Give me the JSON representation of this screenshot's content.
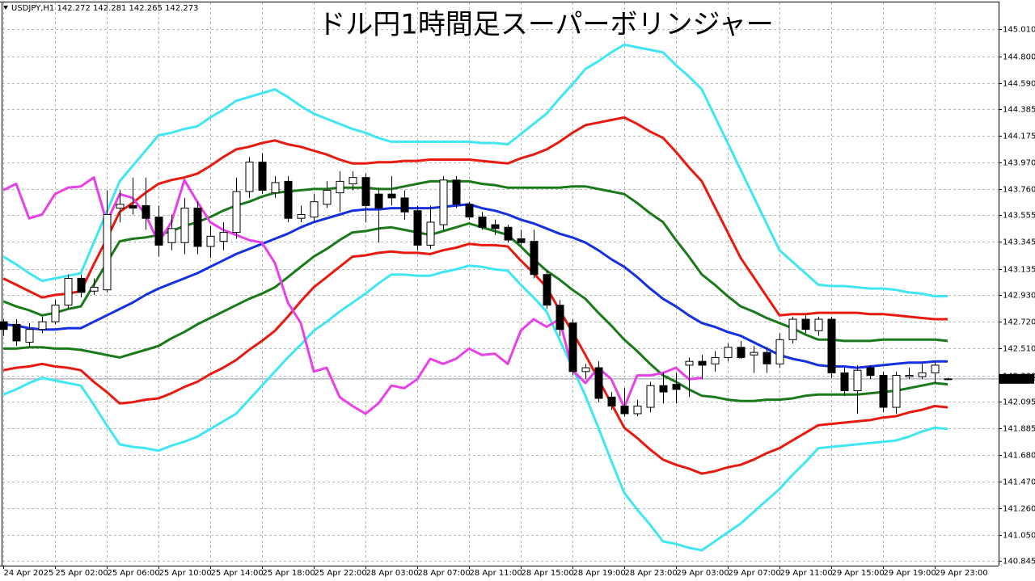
{
  "chart_data": {
    "type": "candlestick",
    "title": "ドル円1時間足スーパーボリンジャー",
    "header": "USDJPY,H1  142.272 142.281 142.265 142.273",
    "current_price": 142.273,
    "grid": true,
    "ylim": [
      140.81,
      145.24
    ],
    "yticks": [
      {
        "value": 145.01,
        "label": "145.010"
      },
      {
        "value": 144.8,
        "label": "144.800"
      },
      {
        "value": 144.59,
        "label": "144.590"
      },
      144.385,
      144.175,
      {
        "value": 143.97,
        "label": "143.970"
      },
      {
        "value": 143.76,
        "label": "143.760"
      },
      143.555,
      143.345,
      143.135,
      {
        "value": 142.93,
        "label": "142.930"
      },
      {
        "value": 142.72,
        "label": "142.720"
      },
      {
        "value": 142.51,
        "label": "142.510"
      },
      {
        "value": 142.3,
        "label": "142.300"
      },
      142.095,
      141.885,
      {
        "value": 141.68,
        "label": "141.680"
      },
      {
        "value": 141.47,
        "label": "141.470"
      },
      {
        "value": 141.26,
        "label": "141.260"
      },
      {
        "value": 141.05,
        "label": "141.050"
      },
      140.845
    ],
    "categories": [
      "24 Apr 2025",
      null,
      null,
      null,
      "25 Apr 02:00",
      null,
      null,
      null,
      "25 Apr 06:00",
      null,
      null,
      null,
      "25 Apr 10:00",
      null,
      null,
      null,
      "25 Apr 14:00",
      null,
      null,
      null,
      "25 Apr 18:00",
      null,
      null,
      null,
      "25 Apr 22:00",
      null,
      null,
      null,
      "28 Apr 03:00",
      null,
      null,
      null,
      "28 Apr 07:00",
      null,
      null,
      null,
      "28 Apr 11:00",
      null,
      null,
      null,
      "28 Apr 15:00",
      null,
      null,
      null,
      "28 Apr 19:00",
      null,
      null,
      null,
      "28 Apr 23:00",
      null,
      null,
      null,
      "29 Apr 03:00",
      null,
      null,
      null,
      "29 Apr 07:00",
      null,
      null,
      null,
      "29 Apr 11:00",
      null,
      null,
      null,
      "29 Apr 15:00",
      null,
      null,
      null,
      "29 Apr 19:00",
      null,
      null,
      null,
      "29 Apr 23:00",
      null
    ],
    "candles": {
      "up_color": "#ffffff",
      "down_color": "#000000",
      "open": [
        142.72,
        142.7,
        142.56,
        142.66,
        142.72,
        142.85,
        143.06,
        142.96,
        142.97,
        143.61,
        143.63,
        143.63,
        143.54,
        143.34,
        143.34,
        143.61,
        143.31,
        143.35,
        143.42,
        143.74,
        143.97,
        143.73,
        143.82,
        143.53,
        143.54,
        143.64,
        143.73,
        143.8,
        143.85,
        143.72,
        143.72,
        143.69,
        143.59,
        143.32,
        143.48,
        143.83,
        143.64,
        143.54,
        143.48,
        143.46,
        143.37,
        143.35,
        143.09,
        142.85,
        142.71,
        142.33,
        142.36,
        142.13,
        142.06,
        142.0,
        142.05,
        142.22,
        142.23,
        142.38,
        142.41,
        142.39,
        142.44,
        142.52,
        142.46,
        142.48,
        142.39,
        142.58,
        142.74,
        142.65,
        142.74,
        142.32,
        142.18,
        142.36,
        142.3,
        142.05,
        142.29,
        142.29,
        142.32,
        142.272
      ],
      "high": [
        142.74,
        142.74,
        142.71,
        142.76,
        142.89,
        143.09,
        143.09,
        143.06,
        143.75,
        143.75,
        143.85,
        143.85,
        143.63,
        143.56,
        143.69,
        143.66,
        143.47,
        143.5,
        143.85,
        144.01,
        144.04,
        143.86,
        143.86,
        143.63,
        143.72,
        143.82,
        143.9,
        143.9,
        143.88,
        143.77,
        143.86,
        143.75,
        143.63,
        143.63,
        143.86,
        143.86,
        143.66,
        143.58,
        143.52,
        143.48,
        143.44,
        143.44,
        143.12,
        142.89,
        142.74,
        142.39,
        142.41,
        142.17,
        142.2,
        142.11,
        142.25,
        142.32,
        142.32,
        142.44,
        142.46,
        142.49,
        142.55,
        142.57,
        142.53,
        142.52,
        142.63,
        142.76,
        142.77,
        142.76,
        142.76,
        142.36,
        142.38,
        142.38,
        142.33,
        142.33,
        142.36,
        142.39,
        142.41,
        142.281
      ],
      "low": [
        142.61,
        142.53,
        142.52,
        142.63,
        142.7,
        142.82,
        142.91,
        142.93,
        142.95,
        143.5,
        143.56,
        143.44,
        143.23,
        143.28,
        143.25,
        143.25,
        143.22,
        143.28,
        143.37,
        143.69,
        143.72,
        143.69,
        143.5,
        143.5,
        143.5,
        143.61,
        143.58,
        143.75,
        143.5,
        143.34,
        143.63,
        143.52,
        143.28,
        143.29,
        143.44,
        143.61,
        143.52,
        143.44,
        143.4,
        143.34,
        143.31,
        143.06,
        142.82,
        142.61,
        142.3,
        142.27,
        142.09,
        142.03,
        141.98,
        141.98,
        142.01,
        142.08,
        142.08,
        142.13,
        142.27,
        142.33,
        142.41,
        142.43,
        142.32,
        142.32,
        142.36,
        142.55,
        142.63,
        142.61,
        142.28,
        142.14,
        142.0,
        142.27,
        142.01,
        142.0,
        142.27,
        142.27,
        142.24,
        142.265
      ],
      "close": [
        142.66,
        142.57,
        142.66,
        142.72,
        142.85,
        143.06,
        142.95,
        142.99,
        143.56,
        143.64,
        143.61,
        143.53,
        143.32,
        143.45,
        143.61,
        143.31,
        143.39,
        143.42,
        143.74,
        143.97,
        143.75,
        143.81,
        143.53,
        143.56,
        143.66,
        143.75,
        143.82,
        143.85,
        143.63,
        143.61,
        143.69,
        143.58,
        143.32,
        143.5,
        143.83,
        143.64,
        143.54,
        143.46,
        143.45,
        143.36,
        143.34,
        143.09,
        142.85,
        142.66,
        142.33,
        142.36,
        142.12,
        142.06,
        142.0,
        142.06,
        142.22,
        142.17,
        142.19,
        142.41,
        142.38,
        142.44,
        142.52,
        142.44,
        142.48,
        142.39,
        142.58,
        142.74,
        142.66,
        142.74,
        142.32,
        142.18,
        142.34,
        142.3,
        142.05,
        142.3,
        142.3,
        142.32,
        142.38,
        142.273
      ]
    },
    "series": [
      {
        "color": "#40e6f2",
        "values": [
          143.23,
          143.17,
          143.1,
          143.04,
          143.06,
          143.08,
          143.1,
          143.34,
          143.58,
          143.82,
          143.94,
          144.06,
          144.18,
          144.2,
          144.23,
          144.25,
          144.32,
          144.38,
          144.45,
          144.48,
          144.51,
          144.54,
          144.48,
          144.41,
          144.35,
          144.31,
          144.27,
          144.23,
          144.2,
          144.16,
          144.13,
          144.13,
          144.13,
          144.13,
          144.13,
          144.13,
          144.13,
          144.12,
          144.12,
          144.11,
          144.19,
          144.27,
          144.35,
          144.47,
          144.58,
          144.7,
          144.76,
          144.83,
          144.89,
          144.87,
          144.85,
          144.83,
          144.73,
          144.64,
          144.54,
          144.33,
          144.12,
          143.91,
          143.7,
          143.49,
          143.28,
          143.19,
          143.1,
          143.01,
          143.0,
          143.0,
          142.99,
          142.98,
          142.98,
          142.97,
          142.95,
          142.94,
          142.92,
          142.92
        ]
      },
      {
        "color": "#e81a10",
        "values": [
          143.06,
          143.01,
          142.96,
          142.91,
          142.93,
          142.94,
          142.96,
          143.17,
          143.37,
          143.58,
          143.65,
          143.73,
          143.8,
          143.83,
          143.85,
          143.88,
          143.94,
          144.01,
          144.07,
          144.09,
          144.12,
          144.14,
          144.11,
          144.09,
          144.06,
          144.03,
          143.99,
          143.96,
          143.96,
          143.97,
          143.97,
          143.98,
          143.98,
          143.99,
          143.99,
          143.99,
          143.99,
          143.98,
          143.97,
          143.96,
          144.0,
          144.03,
          144.07,
          144.13,
          144.2,
          144.26,
          144.28,
          144.3,
          144.32,
          144.27,
          144.21,
          144.16,
          144.05,
          143.93,
          143.82,
          143.62,
          143.42,
          143.22,
          143.07,
          142.92,
          142.77,
          142.78,
          142.78,
          142.79,
          142.79,
          142.79,
          142.79,
          142.78,
          142.78,
          142.77,
          142.76,
          142.75,
          142.74,
          142.74
        ]
      },
      {
        "color": "#1a7a1a",
        "values": [
          142.88,
          142.84,
          142.81,
          142.77,
          142.79,
          142.82,
          142.84,
          143.01,
          143.18,
          143.35,
          143.37,
          143.38,
          143.4,
          143.43,
          143.47,
          143.5,
          143.54,
          143.59,
          143.63,
          143.66,
          143.7,
          143.73,
          143.74,
          143.75,
          143.76,
          143.76,
          143.77,
          143.77,
          143.77,
          143.76,
          143.76,
          143.78,
          143.8,
          143.82,
          143.82,
          143.82,
          143.82,
          143.8,
          143.79,
          143.77,
          143.77,
          143.77,
          143.77,
          143.77,
          143.78,
          143.78,
          143.76,
          143.74,
          143.72,
          143.65,
          143.57,
          143.5,
          143.36,
          143.23,
          143.09,
          143.01,
          142.92,
          142.84,
          142.8,
          142.75,
          142.71,
          142.67,
          142.62,
          142.58,
          142.58,
          142.57,
          142.57,
          142.57,
          142.58,
          142.58,
          142.58,
          142.58,
          142.58,
          142.57
        ]
      },
      {
        "color": "#1430e0",
        "values": [
          142.7,
          142.69,
          142.67,
          142.66,
          142.66,
          142.67,
          142.67,
          142.72,
          142.77,
          142.82,
          142.87,
          142.93,
          142.98,
          143.02,
          143.06,
          143.1,
          143.15,
          143.2,
          143.25,
          143.29,
          143.33,
          143.37,
          143.41,
          143.46,
          143.5,
          143.53,
          143.56,
          143.59,
          143.6,
          143.6,
          143.61,
          143.61,
          143.61,
          143.61,
          143.62,
          143.63,
          143.64,
          143.61,
          143.59,
          143.56,
          143.52,
          143.49,
          143.45,
          143.41,
          143.38,
          143.34,
          143.28,
          143.21,
          143.15,
          143.07,
          142.98,
          142.9,
          142.84,
          142.77,
          142.71,
          142.68,
          142.64,
          142.61,
          142.56,
          142.51,
          142.46,
          142.43,
          142.41,
          142.38,
          142.37,
          142.37,
          142.36,
          142.37,
          142.38,
          142.39,
          142.4,
          142.4,
          142.41,
          142.41
        ]
      },
      {
        "color": "#1a7a1a",
        "values": [
          142.51,
          142.51,
          142.52,
          142.52,
          142.51,
          142.51,
          142.5,
          142.48,
          142.46,
          142.44,
          142.47,
          142.5,
          142.53,
          142.59,
          142.64,
          142.7,
          142.75,
          142.8,
          142.85,
          142.9,
          142.94,
          142.99,
          143.07,
          143.15,
          143.23,
          143.29,
          143.36,
          143.42,
          143.43,
          143.45,
          143.46,
          143.44,
          143.42,
          143.4,
          143.43,
          143.46,
          143.49,
          143.46,
          143.43,
          143.4,
          143.31,
          143.21,
          143.12,
          143.05,
          142.97,
          142.9,
          142.79,
          142.69,
          142.58,
          142.49,
          142.39,
          142.3,
          142.25,
          142.19,
          142.14,
          142.13,
          142.11,
          142.1,
          142.1,
          142.11,
          142.11,
          142.12,
          142.14,
          142.15,
          142.15,
          142.15,
          142.15,
          142.16,
          142.17,
          142.18,
          142.2,
          142.22,
          142.24,
          142.23
        ]
      },
      {
        "color": "#e81a10",
        "values": [
          142.34,
          142.36,
          142.37,
          142.39,
          142.37,
          142.36,
          142.34,
          142.25,
          142.17,
          142.08,
          142.09,
          142.11,
          142.12,
          142.16,
          142.21,
          142.25,
          142.31,
          142.36,
          142.42,
          142.5,
          142.57,
          142.65,
          142.76,
          142.88,
          142.99,
          143.07,
          143.15,
          143.23,
          143.24,
          143.26,
          143.27,
          143.26,
          143.26,
          143.25,
          143.28,
          143.3,
          143.33,
          143.32,
          143.32,
          143.31,
          143.2,
          143.1,
          142.99,
          142.81,
          142.64,
          142.46,
          142.27,
          142.08,
          141.89,
          141.81,
          141.72,
          141.64,
          141.6,
          141.57,
          141.53,
          141.55,
          141.58,
          141.6,
          141.64,
          141.69,
          141.73,
          141.79,
          141.85,
          141.91,
          141.92,
          141.93,
          141.94,
          141.95,
          141.97,
          141.98,
          142.01,
          142.03,
          142.06,
          142.05
        ]
      },
      {
        "color": "#40e6f2",
        "values": [
          142.15,
          142.19,
          142.24,
          142.28,
          142.26,
          142.24,
          142.22,
          142.07,
          141.91,
          141.76,
          141.74,
          141.73,
          141.71,
          141.75,
          141.78,
          141.82,
          141.88,
          141.94,
          142.0,
          142.11,
          142.22,
          142.33,
          142.44,
          142.54,
          142.65,
          142.72,
          142.8,
          142.87,
          142.94,
          143.02,
          143.09,
          143.09,
          143.08,
          143.08,
          143.11,
          143.13,
          143.16,
          143.15,
          143.13,
          143.12,
          143.01,
          142.91,
          142.8,
          142.58,
          142.36,
          142.14,
          141.89,
          141.63,
          141.38,
          141.25,
          141.13,
          141.0,
          140.98,
          140.95,
          140.93,
          141.0,
          141.07,
          141.14,
          141.23,
          141.32,
          141.41,
          141.52,
          141.62,
          141.73,
          141.74,
          141.75,
          141.76,
          141.77,
          141.78,
          141.79,
          141.82,
          141.86,
          141.89,
          141.88
        ]
      },
      {
        "color": "#e840e8",
        "values": [
          143.75,
          143.8,
          143.53,
          143.56,
          143.72,
          143.77,
          143.78,
          143.85,
          143.5,
          143.72,
          143.69,
          143.56,
          143.34,
          143.5,
          143.83,
          143.66,
          143.5,
          143.44,
          143.4,
          143.36,
          143.34,
          143.18,
          142.87,
          142.71,
          142.33,
          142.36,
          142.13,
          142.06,
          142.0,
          142.08,
          142.22,
          142.2,
          142.27,
          142.43,
          142.39,
          142.43,
          142.51,
          142.46,
          142.47,
          142.39,
          142.65,
          142.74,
          142.68,
          142.74,
          142.34,
          142.24,
          142.36,
          142.27,
          142.05,
          142.3,
          142.3,
          142.32,
          142.36,
          142.27,
          142.28,
          null,
          null,
          null,
          null,
          null,
          null,
          null,
          null,
          null,
          null,
          null,
          null,
          null,
          null,
          null,
          null,
          null,
          null,
          null
        ]
      }
    ]
  }
}
